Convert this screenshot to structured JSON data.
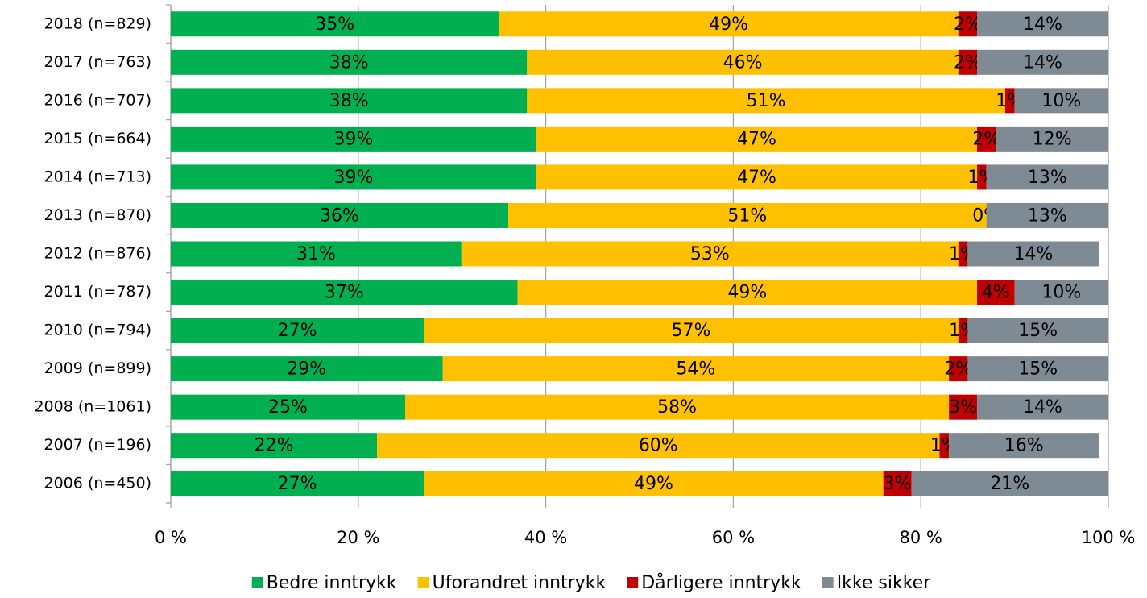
{
  "chart_data": {
    "type": "stacked_barh",
    "categories": [
      "2018 (n=829)",
      "2017 (n=763)",
      "2016 (n=707)",
      "2015 (n=664)",
      "2014 (n=713)",
      "2013 (n=870)",
      "2012 (n=876)",
      "2011 (n=787)",
      "2010 (n=794)",
      "2009 (n=899)",
      "2008 (n=1061)",
      "2007 (n=196)",
      "2006 (n=450)"
    ],
    "series": [
      {
        "name": "Bedre inntrykk",
        "color": "#00b050",
        "values": [
          35,
          38,
          38,
          39,
          39,
          36,
          31,
          37,
          27,
          29,
          25,
          22,
          27
        ],
        "value_labels": [
          "35%",
          "38%",
          "38%",
          "39%",
          "39%",
          "36%",
          "31%",
          "37%",
          "27%",
          "29%",
          "25%",
          "22%",
          "27%"
        ]
      },
      {
        "name": "Uforandret inntrykk",
        "color": "#ffc000",
        "values": [
          49,
          46,
          51,
          47,
          47,
          51,
          53,
          49,
          57,
          54,
          58,
          60,
          49
        ],
        "value_labels": [
          "49%",
          "46%",
          "51%",
          "47%",
          "47%",
          "51%",
          "53%",
          "49%",
          "57%",
          "54%",
          "58%",
          "60%",
          "49%"
        ]
      },
      {
        "name": "Dårligere inntrykk",
        "color": "#c00000",
        "values": [
          2,
          2,
          1,
          2,
          1,
          0,
          1,
          4,
          1,
          2,
          3,
          1,
          3
        ],
        "value_labels": [
          "2%",
          "2%",
          "1%",
          "2%",
          "1%",
          "0%",
          "1%",
          "4%",
          "1%",
          "2%",
          "3%",
          "1%",
          "3%"
        ]
      },
      {
        "name": "Ikke sikker",
        "color": "#7f8b94",
        "values": [
          14,
          14,
          10,
          12,
          13,
          13,
          14,
          10,
          15,
          15,
          14,
          16,
          21
        ],
        "value_labels": [
          "14%",
          "14%",
          "10%",
          "12%",
          "13%",
          "13%",
          "14%",
          "10%",
          "15%",
          "15%",
          "14%",
          "16%",
          "21%"
        ]
      }
    ],
    "xlim": [
      0,
      100
    ],
    "xticks": [
      {
        "value": 0,
        "label": "0 %"
      },
      {
        "value": 20,
        "label": "20 %"
      },
      {
        "value": 40,
        "label": "40 %"
      },
      {
        "value": 60,
        "label": "60 %"
      },
      {
        "value": 80,
        "label": "80 %"
      },
      {
        "value": 100,
        "label": "100 %"
      }
    ],
    "grid": true,
    "legend": "bottom"
  }
}
